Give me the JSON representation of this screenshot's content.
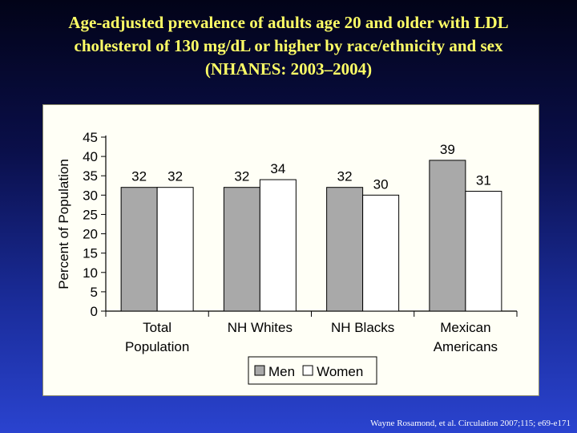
{
  "title_lines": [
    "Age-adjusted prevalence of adults age 20 and older with LDL",
    "cholesterol of 130 mg/dL or higher by race/ethnicity and sex",
    "(NHANES: 2003–2004)"
  ],
  "citation": "Wayne Rosamond, et al. Circulation  2007;115; e69-e171",
  "chart_data": {
    "type": "bar",
    "title": "Age-adjusted prevalence of adults age 20 and older with LDL cholesterol of 130 mg/dL or higher by race/ethnicity and sex (NHANES: 2003–2004)",
    "xlabel": "",
    "ylabel": "Percent of Population",
    "ylim": [
      0,
      45
    ],
    "yticks": [
      0,
      5,
      10,
      15,
      20,
      25,
      30,
      35,
      40,
      45
    ],
    "categories": [
      [
        "Total",
        "Population"
      ],
      [
        "NH Whites"
      ],
      [
        "NH Blacks"
      ],
      [
        "Mexican",
        "Americans"
      ]
    ],
    "series": [
      {
        "name": "Men",
        "values": [
          32,
          32,
          32,
          39
        ],
        "color": "#a9a9a9"
      },
      {
        "name": "Women",
        "values": [
          32,
          34,
          30,
          31
        ],
        "color": "#ffffff"
      }
    ],
    "data_labels": true,
    "grid": false,
    "legend_position": "bottom"
  }
}
